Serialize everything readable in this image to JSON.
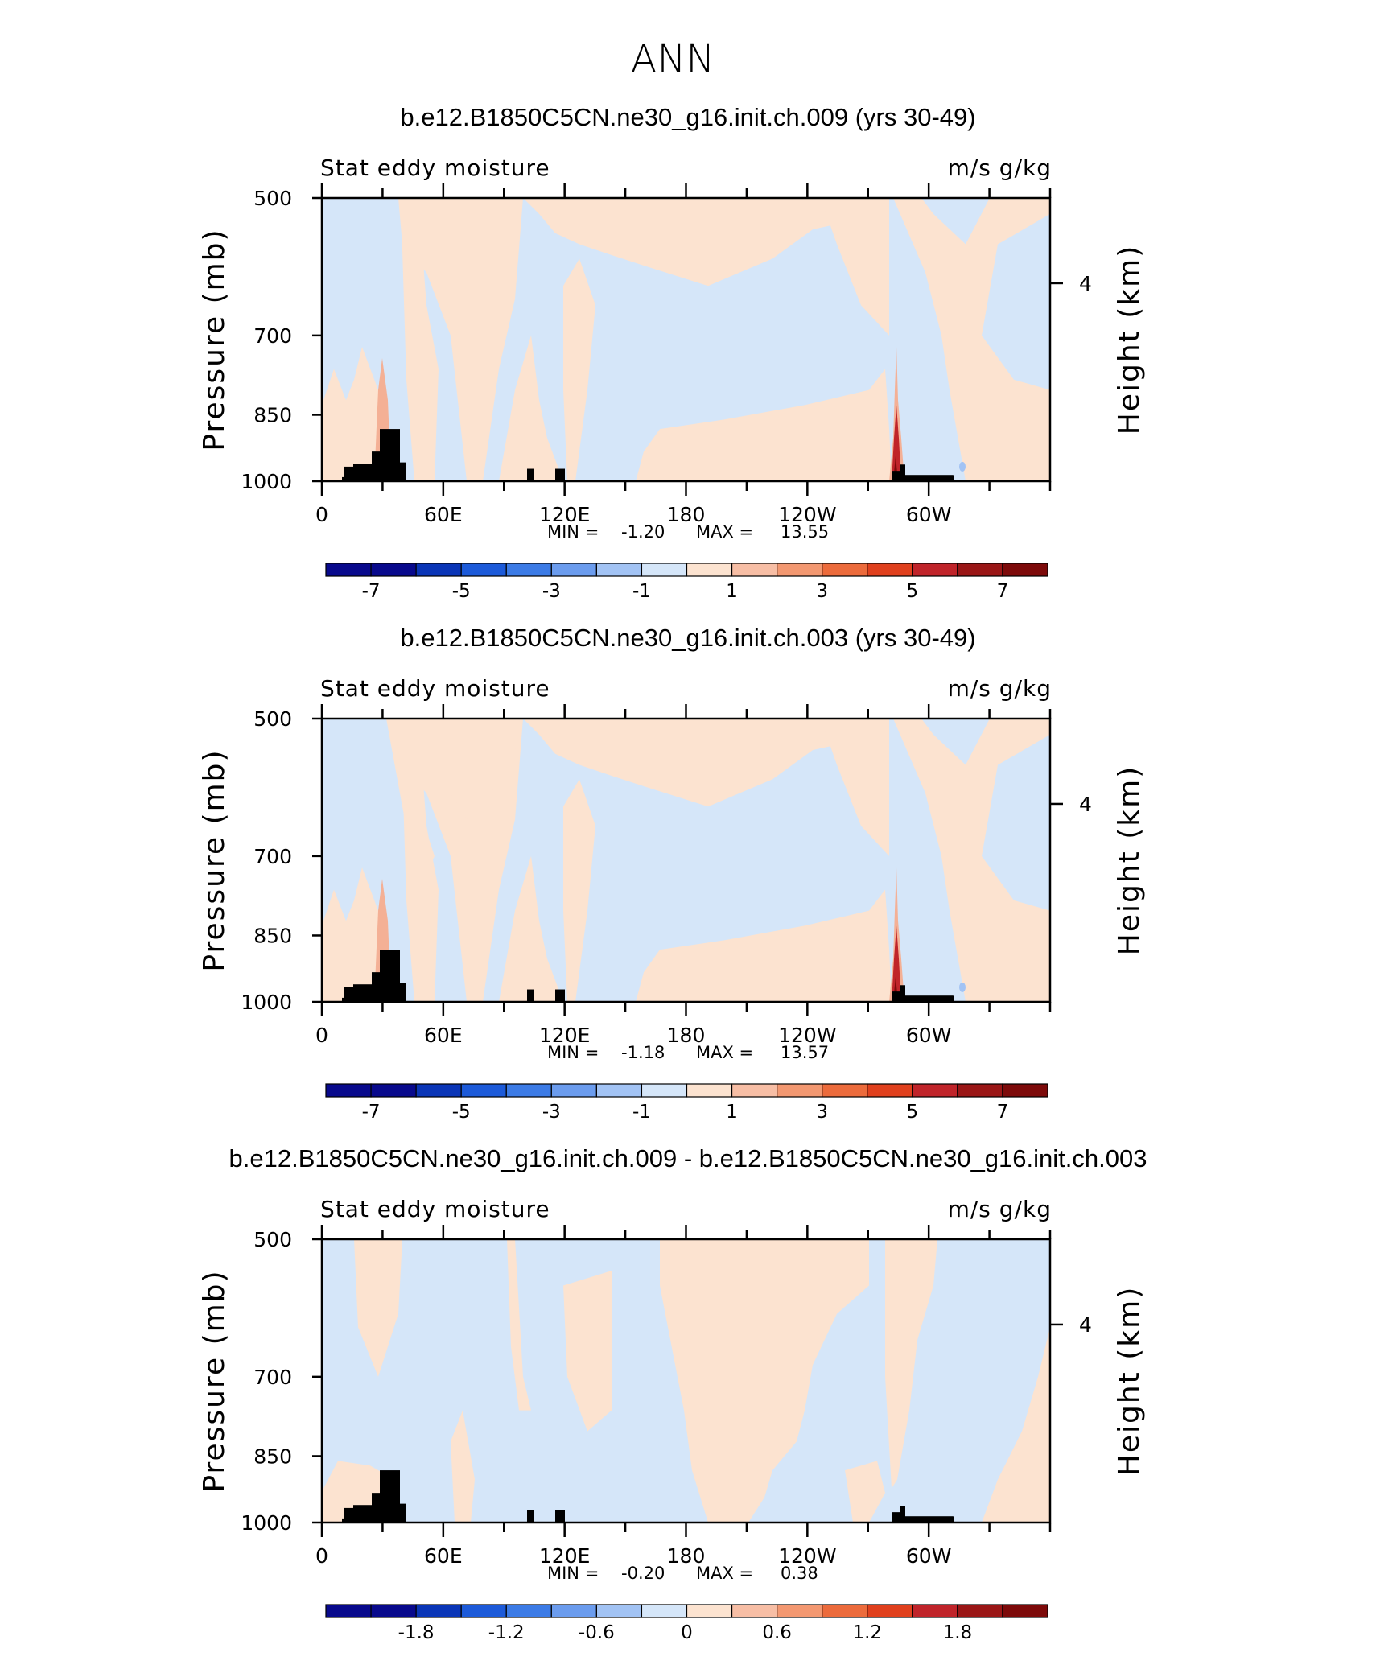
{
  "figure_title": "ANN",
  "colors": {
    "blue_fill": "#d5e6f9",
    "orange_fill": "#fce3d0",
    "orange_mid": "#f4b095",
    "red_hot": "#c0242a",
    "red_dark": "#7d0a0a",
    "land_mask": "#000000",
    "axis": "#000000"
  },
  "chart_data": [
    {
      "type": "contour",
      "title": "b.e12.B1850C5CN.ne30_g16.init.ch.009 (yrs 30-49)",
      "left_string": "Stat eddy moisture",
      "right_string": "m/s g/kg",
      "ylabel": "Pressure (mb)",
      "ylabel_right": "Height (km)",
      "yticks": [
        "500",
        "700",
        "850",
        "1000"
      ],
      "ytick_values": [
        500,
        700,
        850,
        1000
      ],
      "yticks_right": [
        "4"
      ],
      "xticks": [
        "0",
        "60E",
        "120E",
        "180",
        "120W",
        "60W"
      ],
      "xtick_values": [
        0,
        60,
        120,
        180,
        240,
        300
      ],
      "xlim": [
        0,
        360
      ],
      "ylim": [
        1000,
        500
      ],
      "min_label": "MIN =",
      "min_value": "-1.20",
      "max_label": "MAX =",
      "max_value": "13.55",
      "colorbar": {
        "labels": [
          "-7",
          "-5",
          "-3",
          "-1",
          "1",
          "3",
          "5",
          "7"
        ],
        "colors": [
          "#08098c",
          "#0a35b7",
          "#1c5ad9",
          "#3c7be6",
          "#6b9cee",
          "#a2c3f4",
          "#d5e6f9",
          "#fce3d0",
          "#f7bea5",
          "#f39871",
          "#ec6b3c",
          "#e0401d",
          "#c0242a",
          "#9a1616",
          "#7d0a0a"
        ]
      },
      "variant": "a"
    },
    {
      "type": "contour",
      "title": "b.e12.B1850C5CN.ne30_g16.init.ch.003 (yrs 30-49)",
      "left_string": "Stat eddy moisture",
      "right_string": "m/s g/kg",
      "ylabel": "Pressure (mb)",
      "ylabel_right": "Height (km)",
      "yticks": [
        "500",
        "700",
        "850",
        "1000"
      ],
      "ytick_values": [
        500,
        700,
        850,
        1000
      ],
      "yticks_right": [
        "4"
      ],
      "xticks": [
        "0",
        "60E",
        "120E",
        "180",
        "120W",
        "60W"
      ],
      "xtick_values": [
        0,
        60,
        120,
        180,
        240,
        300
      ],
      "xlim": [
        0,
        360
      ],
      "ylim": [
        1000,
        500
      ],
      "min_label": "MIN =",
      "min_value": "-1.18",
      "max_label": "MAX =",
      "max_value": "13.57",
      "colorbar": {
        "labels": [
          "-7",
          "-5",
          "-3",
          "-1",
          "1",
          "3",
          "5",
          "7"
        ],
        "colors": [
          "#08098c",
          "#0a35b7",
          "#1c5ad9",
          "#3c7be6",
          "#6b9cee",
          "#a2c3f4",
          "#d5e6f9",
          "#fce3d0",
          "#f7bea5",
          "#f39871",
          "#ec6b3c",
          "#e0401d",
          "#c0242a",
          "#9a1616",
          "#7d0a0a"
        ]
      },
      "variant": "b"
    },
    {
      "type": "contour",
      "title": "b.e12.B1850C5CN.ne30_g16.init.ch.009 - b.e12.B1850C5CN.ne30_g16.init.ch.003",
      "left_string": "Stat eddy moisture",
      "right_string": "m/s g/kg",
      "ylabel": "Pressure (mb)",
      "ylabel_right": "Height (km)",
      "yticks": [
        "500",
        "700",
        "850",
        "1000"
      ],
      "ytick_values": [
        500,
        700,
        850,
        1000
      ],
      "yticks_right": [
        "4"
      ],
      "xticks": [
        "0",
        "60E",
        "120E",
        "180",
        "120W",
        "60W"
      ],
      "xtick_values": [
        0,
        60,
        120,
        180,
        240,
        300
      ],
      "xlim": [
        0,
        360
      ],
      "ylim": [
        1000,
        500
      ],
      "min_label": "MIN =",
      "min_value": "-0.20",
      "max_label": "MAX =",
      "max_value": "0.38",
      "colorbar": {
        "labels": [
          "-1.8",
          "-1.2",
          "-0.6",
          "0",
          "0.6",
          "1.2",
          "1.8"
        ],
        "colors": [
          "#08098c",
          "#0a35b7",
          "#1c5ad9",
          "#3c7be6",
          "#6b9cee",
          "#a2c3f4",
          "#d5e6f9",
          "#fce3d0",
          "#f7bea5",
          "#f39871",
          "#ec6b3c",
          "#e0401d",
          "#c0242a",
          "#9a1616",
          "#7d0a0a"
        ]
      },
      "variant": "diff"
    }
  ]
}
